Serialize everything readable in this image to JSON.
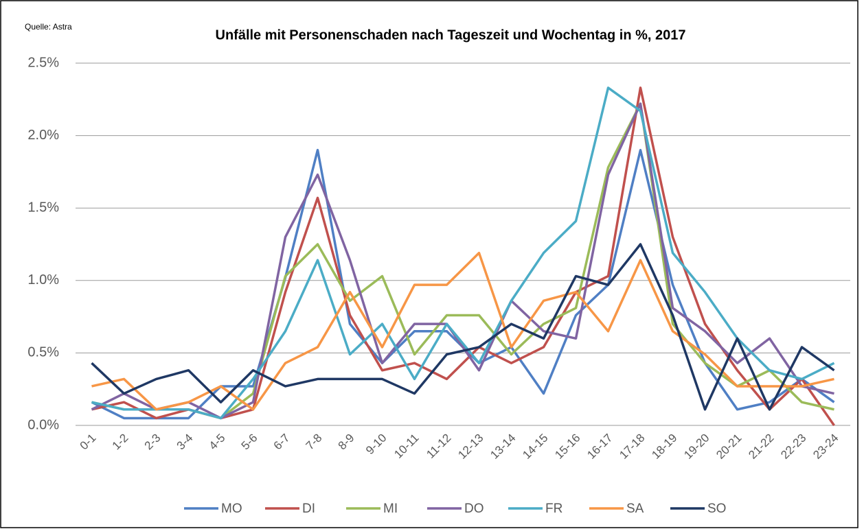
{
  "chart_data": {
    "type": "line",
    "title": "Unfälle mit Personenschaden nach Tageszeit und Wochentag in %, 2017",
    "source": "Quelle: Astra",
    "categories": [
      "0-1",
      "1-2",
      "2-3",
      "3-4",
      "4-5",
      "5-6",
      "6-7",
      "7-8",
      "8-9",
      "9-10",
      "10-11",
      "11-12",
      "12-13",
      "13-14",
      "14-15",
      "15-16",
      "16-17",
      "17-18",
      "18-19",
      "19-20",
      "20-21",
      "21-22",
      "22-23",
      "23-24"
    ],
    "ylim": [
      0,
      2.5
    ],
    "yticks": [
      {
        "value": 0,
        "label": "0.0%"
      },
      {
        "value": 0.5,
        "label": "0.5%"
      },
      {
        "value": 1,
        "label": "1.0%"
      },
      {
        "value": 1.5,
        "label": "1.5%"
      },
      {
        "value": 2,
        "label": "2.0%"
      },
      {
        "value": 2.5,
        "label": "2.5%"
      }
    ],
    "grid": true,
    "legend": "bottom",
    "series": [
      {
        "name": "MO",
        "color": "#4f7fc4",
        "values": [
          0.16,
          0.05,
          0.05,
          0.05,
          0.27,
          0.27,
          1.02,
          1.9,
          0.7,
          0.43,
          0.65,
          0.65,
          0.43,
          0.54,
          0.22,
          0.76,
          0.97,
          1.9,
          0.97,
          0.43,
          0.11,
          0.16,
          0.32,
          0.16
        ]
      },
      {
        "name": "DI",
        "color": "#c0504d",
        "values": [
          0.11,
          0.16,
          0.05,
          0.11,
          0.05,
          0.11,
          0.92,
          1.57,
          0.76,
          0.38,
          0.43,
          0.32,
          0.54,
          0.43,
          0.54,
          0.92,
          1.03,
          2.33,
          1.3,
          0.7,
          0.38,
          0.11,
          0.32,
          0
        ]
      },
      {
        "name": "MI",
        "color": "#9bbb59",
        "values": [
          0.16,
          0.11,
          0.11,
          0.11,
          0.05,
          0.22,
          1.03,
          1.25,
          0.86,
          1.03,
          0.49,
          0.76,
          0.76,
          0.49,
          0.7,
          0.81,
          1.78,
          2.22,
          0.7,
          0.43,
          0.27,
          0.38,
          0.16,
          0.11
        ]
      },
      {
        "name": "DO",
        "color": "#8064a2",
        "values": [
          0.11,
          0.22,
          0.11,
          0.16,
          0.05,
          0.16,
          1.3,
          1.73,
          1.14,
          0.43,
          0.7,
          0.7,
          0.38,
          0.86,
          0.65,
          0.6,
          1.73,
          2.22,
          0.81,
          0.65,
          0.43,
          0.6,
          0.27,
          0.22
        ]
      },
      {
        "name": "FR",
        "color": "#4bacc6",
        "values": [
          0.16,
          0.11,
          0.11,
          0.11,
          0.05,
          0.32,
          0.65,
          1.14,
          0.49,
          0.7,
          0.32,
          0.7,
          0.43,
          0.86,
          1.19,
          1.41,
          2.33,
          2.17,
          1.19,
          0.92,
          0.6,
          0.38,
          0.32,
          0.43
        ]
      },
      {
        "name": "SA",
        "color": "#f79646",
        "values": [
          0.27,
          0.32,
          0.11,
          0.16,
          0.27,
          0.11,
          0.43,
          0.54,
          0.92,
          0.54,
          0.97,
          0.97,
          1.19,
          0.54,
          0.86,
          0.92,
          0.65,
          1.14,
          0.65,
          0.49,
          0.27,
          0.27,
          0.27,
          0.32
        ]
      },
      {
        "name": "SO",
        "color": "#1f3864",
        "values": [
          0.43,
          0.22,
          0.32,
          0.38,
          0.16,
          0.38,
          0.27,
          0.32,
          0.32,
          0.32,
          0.22,
          0.49,
          0.54,
          0.7,
          0.6,
          1.03,
          0.97,
          1.25,
          0.76,
          0.11,
          0.6,
          0.11,
          0.54,
          0.38
        ]
      }
    ]
  }
}
